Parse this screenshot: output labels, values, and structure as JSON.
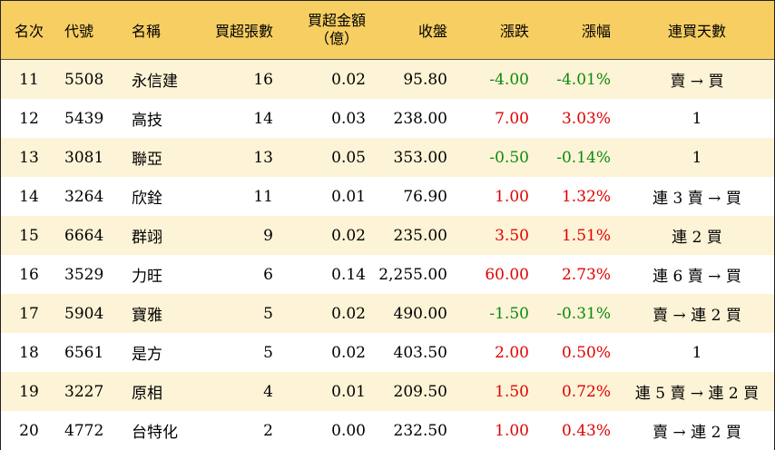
{
  "headers": {
    "rank": "名次",
    "code": "代號",
    "name": "名稱",
    "lots": "買超張數",
    "amount_line1": "買超金額",
    "amount_line2": "（億）",
    "close": "收盤",
    "change": "漲跌",
    "pct": "漲幅",
    "days": "連買天數"
  },
  "colors": {
    "header_bg": "#f6ce62",
    "stripe_bg": "#fdf3d6",
    "up": "#e00000",
    "down": "#0b8a0b"
  },
  "rows": [
    {
      "rank": "11",
      "code": "5508",
      "name": "永信建",
      "lots": "16",
      "amount": "0.02",
      "close": "95.80",
      "change": "-4.00",
      "pct": "-4.01%",
      "days": "賣 → 買",
      "direction": "down"
    },
    {
      "rank": "12",
      "code": "5439",
      "name": "高技",
      "lots": "14",
      "amount": "0.03",
      "close": "238.00",
      "change": "7.00",
      "pct": "3.03%",
      "days": "1",
      "direction": "up"
    },
    {
      "rank": "13",
      "code": "3081",
      "name": "聯亞",
      "lots": "13",
      "amount": "0.05",
      "close": "353.00",
      "change": "-0.50",
      "pct": "-0.14%",
      "days": "1",
      "direction": "down"
    },
    {
      "rank": "14",
      "code": "3264",
      "name": "欣銓",
      "lots": "11",
      "amount": "0.01",
      "close": "76.90",
      "change": "1.00",
      "pct": "1.32%",
      "days": "連 3 賣 → 買",
      "direction": "up"
    },
    {
      "rank": "15",
      "code": "6664",
      "name": "群翊",
      "lots": "9",
      "amount": "0.02",
      "close": "235.00",
      "change": "3.50",
      "pct": "1.51%",
      "days": "連 2 買",
      "direction": "up"
    },
    {
      "rank": "16",
      "code": "3529",
      "name": "力旺",
      "lots": "6",
      "amount": "0.14",
      "close": "2,255.00",
      "change": "60.00",
      "pct": "2.73%",
      "days": "連 6 賣 → 買",
      "direction": "up"
    },
    {
      "rank": "17",
      "code": "5904",
      "name": "寶雅",
      "lots": "5",
      "amount": "0.02",
      "close": "490.00",
      "change": "-1.50",
      "pct": "-0.31%",
      "days": "賣 → 連 2 買",
      "direction": "down"
    },
    {
      "rank": "18",
      "code": "6561",
      "name": "是方",
      "lots": "5",
      "amount": "0.02",
      "close": "403.50",
      "change": "2.00",
      "pct": "0.50%",
      "days": "1",
      "direction": "up"
    },
    {
      "rank": "19",
      "code": "3227",
      "name": "原相",
      "lots": "4",
      "amount": "0.01",
      "close": "209.50",
      "change": "1.50",
      "pct": "0.72%",
      "days": "連 5 賣 → 連 2 買",
      "direction": "up"
    },
    {
      "rank": "20",
      "code": "4772",
      "name": "台特化",
      "lots": "2",
      "amount": "0.00",
      "close": "232.50",
      "change": "1.00",
      "pct": "0.43%",
      "days": "賣 → 連 2 買",
      "direction": "up"
    }
  ]
}
